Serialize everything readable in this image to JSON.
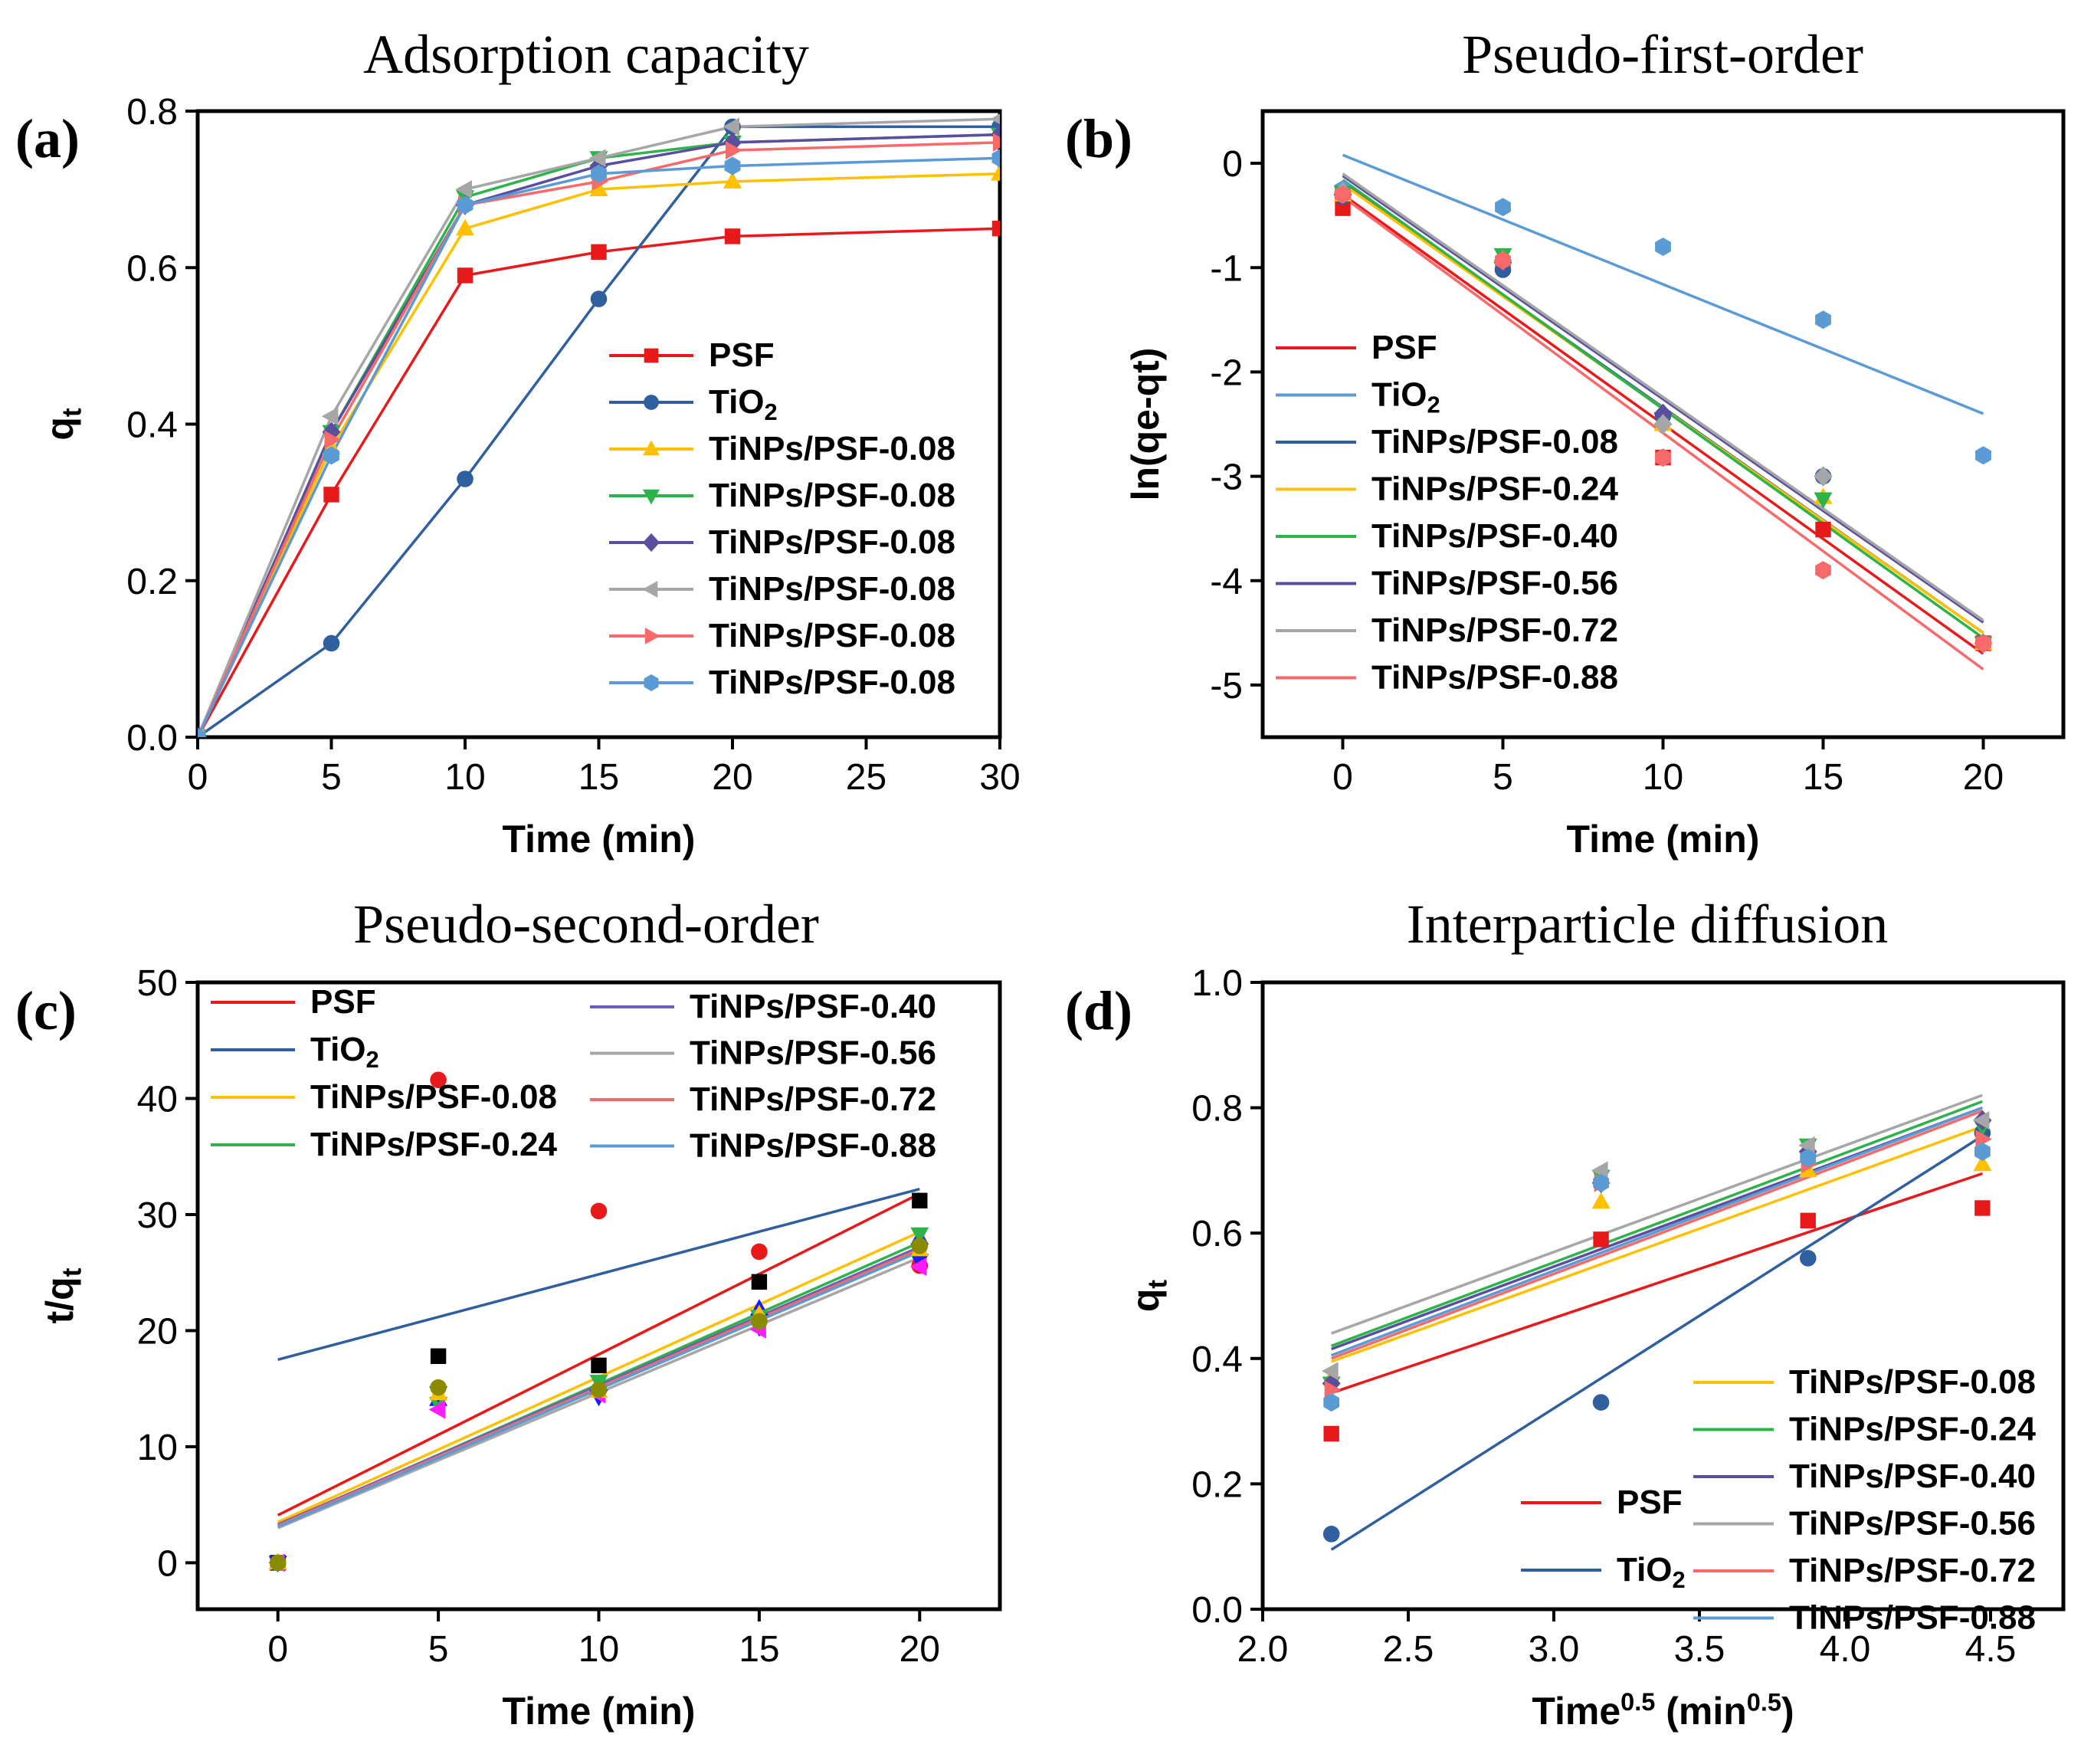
{
  "chart_data": [
    {
      "id": "a",
      "panel_label": "(a)",
      "type": "line",
      "title": "Adsorption capacity",
      "xlabel": "Time (min)",
      "ylabel": {
        "main": "q",
        "sub": "t"
      },
      "xlim": [
        0,
        30
      ],
      "ylim": [
        0,
        0.8
      ],
      "xticks": [
        "0",
        "5",
        "10",
        "15",
        "20",
        "25",
        "30"
      ],
      "yticks": [
        "0.0",
        "0.2",
        "0.4",
        "0.6",
        "0.8"
      ],
      "x": [
        0,
        5,
        10,
        15,
        20,
        30
      ],
      "series": [
        {
          "name": "PSF",
          "color": "#e8191b",
          "marker": "square",
          "values": [
            0,
            0.31,
            0.59,
            0.62,
            0.64,
            0.65
          ]
        },
        {
          "name": "TiO",
          "sub": "2",
          "color": "#2f5f9e",
          "marker": "circle",
          "values": [
            0,
            0.12,
            0.33,
            0.56,
            0.78,
            0.78
          ]
        },
        {
          "name": "TiNPs/PSF-0.08",
          "color": "#ffc000",
          "marker": "triangle-up",
          "values": [
            0,
            0.37,
            0.65,
            0.7,
            0.71,
            0.72
          ]
        },
        {
          "name": "TiNPs/PSF-0.08",
          "color": "#2db34a",
          "marker": "triangle-down",
          "values": [
            0,
            0.39,
            0.69,
            0.74,
            0.76,
            0.77
          ]
        },
        {
          "name": "TiNPs/PSF-0.08",
          "color": "#5a4e9e",
          "marker": "diamond",
          "values": [
            0,
            0.39,
            0.68,
            0.73,
            0.76,
            0.77
          ]
        },
        {
          "name": "TiNPs/PSF-0.08",
          "color": "#a6a6a6",
          "marker": "triangle-left",
          "values": [
            0,
            0.41,
            0.7,
            0.74,
            0.78,
            0.79
          ]
        },
        {
          "name": "TiNPs/PSF-0.08",
          "color": "#f86a6a",
          "marker": "triangle-right",
          "values": [
            0,
            0.38,
            0.68,
            0.71,
            0.75,
            0.76
          ]
        },
        {
          "name": "TiNPs/PSF-0.08",
          "color": "#5b9bd5",
          "marker": "hexagon",
          "values": [
            0,
            0.36,
            0.68,
            0.72,
            0.73,
            0.74
          ]
        }
      ]
    },
    {
      "id": "b",
      "panel_label": "(b)",
      "type": "scatter",
      "title": "Pseudo-first-order",
      "xlabel": "Time (min)",
      "ylabel": "ln(qe-qt)",
      "xlim": [
        -2.5,
        22.5
      ],
      "ylim": [
        -5.5,
        0.5
      ],
      "xticks": [
        "0",
        "5",
        "10",
        "15",
        "20"
      ],
      "yticks": [
        "0",
        "-1",
        "-2",
        "-3",
        "-4",
        "-5"
      ],
      "x": [
        0,
        5,
        10,
        15,
        20
      ],
      "series": [
        {
          "name": "PSF",
          "color": "#e8191b",
          "marker": "square",
          "values": [
            -0.43,
            -0.97,
            -2.82,
            -3.51,
            -4.6
          ],
          "fit": [
            -0.3,
            -4.7
          ]
        },
        {
          "name": "TiO",
          "sub": "2",
          "color": "#5b9bd5",
          "marker": "hexagon",
          "values": [
            -0.25,
            -0.42,
            -0.8,
            -1.5,
            -2.8
          ],
          "fit": [
            0.08,
            -2.4
          ]
        },
        {
          "name": "TiNPs/PSF-0.08",
          "color": "#2f5f9e",
          "marker": "circle",
          "values": [
            -0.32,
            -1.02,
            -2.42,
            -3.0,
            -4.6
          ],
          "fit": [
            -0.18,
            -4.5
          ]
        },
        {
          "name": "TiNPs/PSF-0.24",
          "color": "#ffc000",
          "marker": "triangle-up",
          "values": [
            -0.3,
            -0.9,
            -2.5,
            -3.2,
            -4.6
          ],
          "fit": [
            -0.2,
            -4.5
          ]
        },
        {
          "name": "TiNPs/PSF-0.40",
          "color": "#2db34a",
          "marker": "triangle-down",
          "values": [
            -0.28,
            -0.88,
            -2.45,
            -3.22,
            -4.6
          ],
          "fit": [
            -0.16,
            -4.55
          ]
        },
        {
          "name": "TiNPs/PSF-0.56",
          "color": "#5a4e9e",
          "marker": "diamond",
          "values": [
            -0.3,
            -0.95,
            -2.4,
            -3.0,
            -4.6
          ],
          "fit": [
            -0.12,
            -4.4
          ]
        },
        {
          "name": "TiNPs/PSF-0.72",
          "color": "#a6a6a6",
          "marker": "diamond",
          "values": [
            -0.28,
            -0.93,
            -2.5,
            -3.0,
            -4.6
          ],
          "fit": [
            -0.1,
            -4.38
          ]
        },
        {
          "name": "TiNPs/PSF-0.88",
          "color": "#f86a6a",
          "marker": "hexagon",
          "values": [
            -0.3,
            -0.93,
            -2.82,
            -3.9,
            -4.6
          ],
          "fit": [
            -0.32,
            -4.85
          ]
        }
      ]
    },
    {
      "id": "c",
      "panel_label": "(c)",
      "type": "scatter",
      "title": "Pseudo-second-order",
      "xlabel": "Time (min)",
      "ylabel": {
        "main": "t/q",
        "sub": "t"
      },
      "xlim": [
        -2.5,
        22.5
      ],
      "ylim": [
        -4,
        50
      ],
      "xticks": [
        "0",
        "5",
        "10",
        "15",
        "20"
      ],
      "yticks": [
        "0",
        "10",
        "20",
        "30",
        "40",
        "50"
      ],
      "x": [
        0,
        5,
        10,
        15,
        20
      ],
      "series": [
        {
          "name": "PSF",
          "color": "#e8191b",
          "pointColor": "#000000",
          "marker": "square",
          "values": [
            0,
            17.8,
            17.0,
            24.2,
            31.2
          ],
          "fit": [
            4.1,
            31.8
          ]
        },
        {
          "name": "TiO",
          "sub": "2",
          "color": "#2f5f9e",
          "pointColor": "#e8191b",
          "marker": "circle",
          "values": [
            0,
            41.6,
            30.3,
            26.8,
            25.6
          ],
          "fit": [
            17.5,
            32.2
          ]
        },
        {
          "name": "TiNPs/PSF-0.08",
          "color": "#ffc000",
          "pointColor": "#1a1aff",
          "marker": "triangle-up",
          "values": [
            0,
            14.1,
            15.4,
            21.9,
            28.0
          ],
          "fit": [
            3.5,
            28.5
          ]
        },
        {
          "name": "TiNPs/PSF-0.24",
          "color": "#2db34a",
          "pointColor": "#2db34a",
          "marker": "triangle-down",
          "values": [
            0,
            13.7,
            15.6,
            21.2,
            28.3
          ],
          "fit": [
            3.2,
            27.6
          ]
        },
        {
          "name": "TiNPs/PSF-0.40",
          "color": "#6a5fb5",
          "pointColor": "#1a1aff",
          "marker": "triangle-down",
          "values": [
            0,
            14.6,
            14.3,
            20.3,
            26.0
          ],
          "fit": [
            3.3,
            27.2
          ]
        },
        {
          "name": "TiNPs/PSF-0.56",
          "color": "#a6a6a6",
          "pointColor": "#ff1dff",
          "marker": "triangle-left",
          "values": [
            0,
            13.2,
            14.5,
            20.1,
            25.5
          ],
          "fit": [
            3.0,
            26.3
          ]
        },
        {
          "name": "TiNPs/PSF-0.72",
          "color": "#f86a6a",
          "pointColor": "#ffc000",
          "marker": "triangle-up",
          "values": [
            0,
            14.6,
            14.8,
            21.4,
            27.0
          ],
          "fit": [
            3.2,
            27.0
          ]
        },
        {
          "name": "TiNPs/PSF-0.88",
          "color": "#5b9bd5",
          "pointColor": "#8b8b00",
          "marker": "circle",
          "values": [
            0,
            15.1,
            14.9,
            20.8,
            27.3
          ],
          "fit": [
            3.1,
            26.8
          ]
        }
      ]
    },
    {
      "id": "d",
      "panel_label": "(d)",
      "type": "scatter",
      "title": "Interparticle diffusion",
      "xlabel": {
        "main": "Time",
        "sup": "0.5",
        "rest": " (min",
        "sup2": "0.5",
        "end": ")"
      },
      "ylabel": {
        "main": "q",
        "sub": "t"
      },
      "xlim": [
        2.0,
        4.75
      ],
      "ylim": [
        0,
        1.0
      ],
      "xticks": [
        "2.0",
        "2.5",
        "3.0",
        "3.5",
        "4.0",
        "4.5"
      ],
      "yticks": [
        "0.0",
        "0.2",
        "0.4",
        "0.6",
        "0.8",
        "1.0"
      ],
      "x": [
        2.236,
        3.162,
        3.873,
        4.472
      ],
      "series": [
        {
          "name": "PSF",
          "color": "#e8191b",
          "marker": "square",
          "values": [
            0.28,
            0.59,
            0.62,
            0.64
          ],
          "fit": [
            0.345,
            0.695
          ]
        },
        {
          "name": "TiO",
          "sub": "2",
          "color": "#2f5f9e",
          "marker": "circle",
          "values": [
            0.12,
            0.33,
            0.56,
            0.76
          ],
          "fit": [
            0.095,
            0.755
          ]
        },
        {
          "name": "TiNPs/PSF-0.08",
          "color": "#ffc000",
          "marker": "triangle-up",
          "values": [
            0.37,
            0.65,
            0.7,
            0.71
          ],
          "fit": [
            0.395,
            0.77
          ]
        },
        {
          "name": "TiNPs/PSF-0.24",
          "color": "#2db34a",
          "marker": "triangle-down",
          "values": [
            0.36,
            0.69,
            0.74,
            0.77
          ],
          "fit": [
            0.42,
            0.81
          ]
        },
        {
          "name": "TiNPs/PSF-0.40",
          "color": "#5a4e9e",
          "marker": "diamond",
          "values": [
            0.36,
            0.68,
            0.73,
            0.78
          ],
          "fit": [
            0.415,
            0.8
          ]
        },
        {
          "name": "TiNPs/PSF-0.56",
          "color": "#a6a6a6",
          "marker": "triangle-left",
          "values": [
            0.38,
            0.7,
            0.74,
            0.78
          ],
          "fit": [
            0.44,
            0.82
          ]
        },
        {
          "name": "TiNPs/PSF-0.72",
          "color": "#f86a6a",
          "marker": "triangle-right",
          "values": [
            0.35,
            0.68,
            0.71,
            0.75
          ],
          "fit": [
            0.4,
            0.795
          ]
        },
        {
          "name": "TiNPs/PSF-0.88",
          "color": "#5b9bd5",
          "marker": "hexagon",
          "values": [
            0.33,
            0.68,
            0.72,
            0.73
          ],
          "fit": [
            0.405,
            0.8
          ]
        }
      ]
    }
  ]
}
